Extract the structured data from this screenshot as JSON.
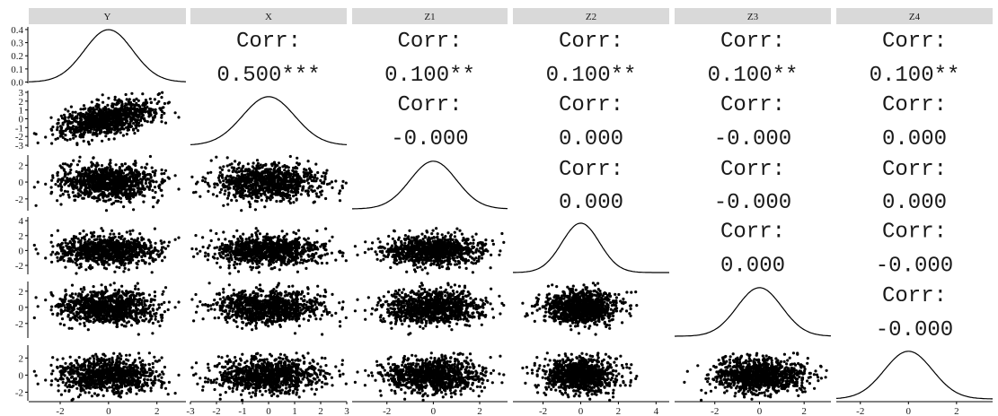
{
  "chart_data": {
    "type": "scatter-matrix",
    "variables": [
      "Y",
      "X",
      "Z1",
      "Z2",
      "Z3",
      "Z4"
    ],
    "corr_prefix": "Corr:",
    "correlations": [
      {
        "row": 0,
        "col": 1,
        "value": "0.500***"
      },
      {
        "row": 0,
        "col": 2,
        "value": "0.100**"
      },
      {
        "row": 0,
        "col": 3,
        "value": "0.100**"
      },
      {
        "row": 0,
        "col": 4,
        "value": "0.100**"
      },
      {
        "row": 0,
        "col": 5,
        "value": "0.100**"
      },
      {
        "row": 1,
        "col": 2,
        "value": "-0.000"
      },
      {
        "row": 1,
        "col": 3,
        "value": "0.000"
      },
      {
        "row": 1,
        "col": 4,
        "value": "-0.000"
      },
      {
        "row": 1,
        "col": 5,
        "value": "0.000"
      },
      {
        "row": 2,
        "col": 3,
        "value": "0.000"
      },
      {
        "row": 2,
        "col": 4,
        "value": "-0.000"
      },
      {
        "row": 2,
        "col": 5,
        "value": "0.000"
      },
      {
        "row": 3,
        "col": 4,
        "value": "0.000"
      },
      {
        "row": 3,
        "col": 5,
        "value": "-0.000"
      },
      {
        "row": 4,
        "col": 5,
        "value": "-0.000"
      }
    ],
    "x_axes": [
      {
        "var": "Y",
        "range": [
          -3.3,
          3.2
        ],
        "ticks": [
          -2,
          0,
          2
        ]
      },
      {
        "var": "X",
        "range": [
          -3.0,
          3.0
        ],
        "ticks": [
          -3,
          -2,
          -1,
          0,
          1,
          2,
          3
        ]
      },
      {
        "var": "Z1",
        "range": [
          -3.5,
          3.2
        ],
        "ticks": [
          -2,
          0,
          2
        ]
      },
      {
        "var": "Z2",
        "range": [
          -3.6,
          4.7
        ],
        "ticks": [
          -2,
          0,
          2,
          4
        ]
      },
      {
        "var": "Z3",
        "range": [
          -3.8,
          3.2
        ],
        "ticks": [
          -2,
          0,
          2
        ]
      },
      {
        "var": "Z4",
        "range": [
          -3.0,
          3.5
        ],
        "ticks": [
          -2,
          0,
          2
        ]
      }
    ],
    "y_axes": [
      {
        "row": 0,
        "var": "Y",
        "range": [
          -0.01,
          0.42
        ],
        "ticks": [
          0.0,
          0.1,
          0.2,
          0.3,
          0.4
        ],
        "tick_labels": [
          "0.0",
          "0.1",
          "0.2",
          "0.3",
          "0.4"
        ]
      },
      {
        "row": 1,
        "var": "X",
        "range": [
          -3.2,
          3.2
        ],
        "ticks": [
          -3,
          -2,
          -1,
          0,
          1,
          2,
          3
        ],
        "tick_labels": [
          "-3",
          "-2",
          "-1",
          "0",
          "1",
          "2",
          "3"
        ]
      },
      {
        "row": 2,
        "var": "Z1",
        "range": [
          -3.4,
          3.2
        ],
        "ticks": [
          -2,
          0,
          2
        ],
        "tick_labels": [
          "-2",
          "0",
          "2"
        ]
      },
      {
        "row": 3,
        "var": "Z2",
        "range": [
          -3.2,
          4.5
        ],
        "ticks": [
          -2,
          0,
          2,
          4
        ],
        "tick_labels": [
          "-2",
          "0",
          "2",
          "4"
        ]
      },
      {
        "row": 4,
        "var": "Z3",
        "range": [
          -3.8,
          3.2
        ],
        "ticks": [
          -2,
          0,
          2
        ],
        "tick_labels": [
          "-2",
          "0",
          "2"
        ]
      },
      {
        "row": 5,
        "var": "Z4",
        "range": [
          -3.0,
          3.5
        ],
        "ticks": [
          -2,
          0,
          2
        ],
        "tick_labels": [
          "-2",
          "0",
          "2"
        ]
      }
    ],
    "distributions": {
      "n_points": 1000,
      "all_standard_normal": true,
      "corr_Y_X": 0.5
    },
    "grid": false,
    "legend": "none"
  }
}
